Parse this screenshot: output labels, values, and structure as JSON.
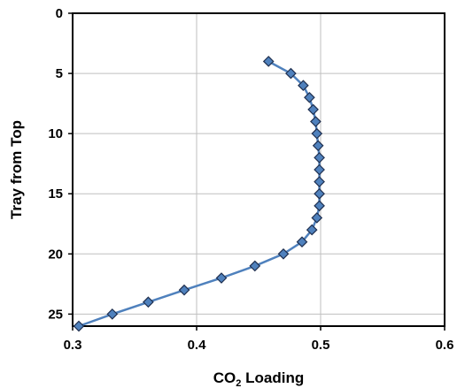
{
  "chart_data": {
    "type": "line",
    "title": "",
    "xlabel": {
      "main": "CO",
      "subscript": "2",
      "rest": " Loading"
    },
    "ylabel": "Tray from Top",
    "xlim": [
      0.3,
      0.6
    ],
    "ylim": [
      0,
      26
    ],
    "y_inverted": true,
    "x_ticks": [
      0.3,
      0.4,
      0.5,
      0.6
    ],
    "x_tick_labels": [
      "0.3",
      "0.4",
      "0.5",
      "0.6"
    ],
    "y_ticks": [
      0,
      5,
      10,
      15,
      20,
      25
    ],
    "y_tick_labels": [
      "0",
      "5",
      "10",
      "15",
      "20",
      "25"
    ],
    "grid": true,
    "legend": "none",
    "series": [
      {
        "color": "#4f81bd",
        "marker": "diamond",
        "marker_edge": "#1f2f4f",
        "points": [
          {
            "x": 0.458,
            "y": 4
          },
          {
            "x": 0.476,
            "y": 5
          },
          {
            "x": 0.486,
            "y": 6
          },
          {
            "x": 0.491,
            "y": 7
          },
          {
            "x": 0.494,
            "y": 8
          },
          {
            "x": 0.496,
            "y": 9
          },
          {
            "x": 0.497,
            "y": 10
          },
          {
            "x": 0.498,
            "y": 11
          },
          {
            "x": 0.499,
            "y": 12
          },
          {
            "x": 0.499,
            "y": 13
          },
          {
            "x": 0.499,
            "y": 14
          },
          {
            "x": 0.499,
            "y": 15
          },
          {
            "x": 0.499,
            "y": 16
          },
          {
            "x": 0.497,
            "y": 17
          },
          {
            "x": 0.493,
            "y": 18
          },
          {
            "x": 0.485,
            "y": 19
          },
          {
            "x": 0.47,
            "y": 20
          },
          {
            "x": 0.447,
            "y": 21
          },
          {
            "x": 0.42,
            "y": 22
          },
          {
            "x": 0.39,
            "y": 23
          },
          {
            "x": 0.361,
            "y": 24
          },
          {
            "x": 0.332,
            "y": 25
          },
          {
            "x": 0.305,
            "y": 26
          }
        ]
      }
    ]
  }
}
